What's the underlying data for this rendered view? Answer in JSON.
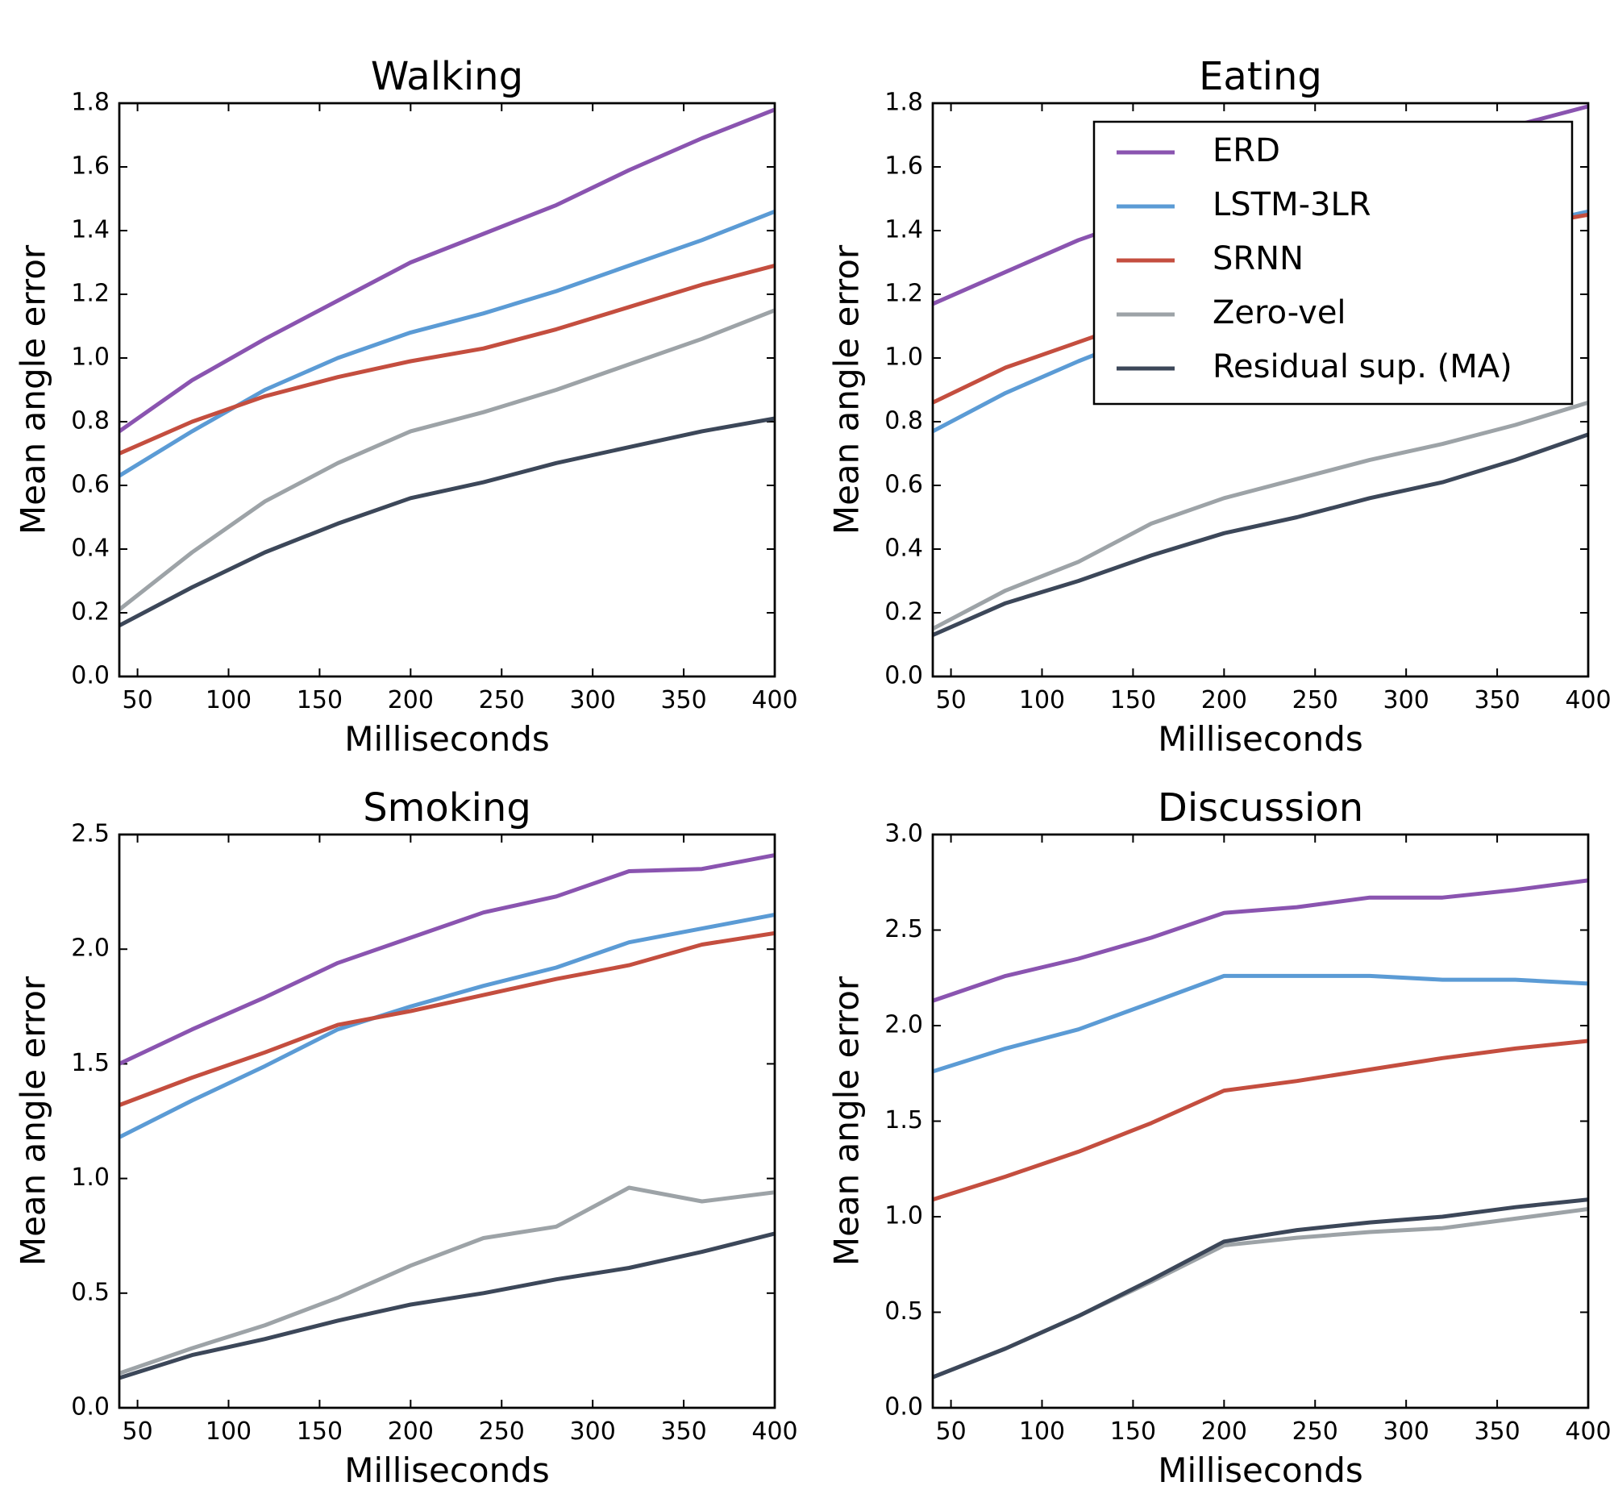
{
  "chart_data": [
    {
      "type": "line",
      "title": "Walking",
      "xlabel": "Milliseconds",
      "ylabel": "Mean angle error",
      "xlim": [
        40,
        400
      ],
      "ylim": [
        0,
        1.8
      ],
      "xticks": [
        50,
        100,
        150,
        200,
        250,
        300,
        350,
        400
      ],
      "xtick_labels": [
        "50",
        "100",
        "150",
        "200",
        "250",
        "300",
        "350",
        "400"
      ],
      "yticks": [
        0,
        0.2,
        0.4,
        0.6,
        0.8,
        1.0,
        1.2,
        1.4,
        1.6,
        1.8
      ],
      "ytick_labels": [
        "0.0",
        "0.2",
        "0.4",
        "0.6",
        "0.8",
        "1.0",
        "1.2",
        "1.4",
        "1.6",
        "1.8"
      ],
      "grid": false,
      "x": [
        40,
        80,
        120,
        160,
        200,
        240,
        280,
        320,
        360,
        400
      ],
      "series": [
        {
          "name": "ERD",
          "color": "#8a54b0",
          "values": [
            0.77,
            0.93,
            1.06,
            1.18,
            1.3,
            1.39,
            1.48,
            1.59,
            1.69,
            1.78
          ]
        },
        {
          "name": "LSTM-3LR",
          "color": "#5b9bd5",
          "values": [
            0.63,
            0.77,
            0.9,
            1.0,
            1.08,
            1.14,
            1.21,
            1.29,
            1.37,
            1.46
          ]
        },
        {
          "name": "SRNN",
          "color": "#c44e3f",
          "values": [
            0.7,
            0.8,
            0.88,
            0.94,
            0.99,
            1.03,
            1.09,
            1.16,
            1.23,
            1.29
          ]
        },
        {
          "name": "Zero-vel",
          "color": "#9da3a7",
          "values": [
            0.21,
            0.39,
            0.55,
            0.67,
            0.77,
            0.83,
            0.9,
            0.98,
            1.06,
            1.15
          ]
        },
        {
          "name": "Residual sup. (MA)",
          "color": "#3c4759",
          "values": [
            0.16,
            0.28,
            0.39,
            0.48,
            0.56,
            0.61,
            0.67,
            0.72,
            0.77,
            0.81
          ]
        }
      ]
    },
    {
      "type": "line",
      "title": "Eating",
      "xlabel": "Milliseconds",
      "ylabel": "Mean angle error",
      "xlim": [
        40,
        400
      ],
      "ylim": [
        0,
        1.8
      ],
      "xticks": [
        50,
        100,
        150,
        200,
        250,
        300,
        350,
        400
      ],
      "xtick_labels": [
        "50",
        "100",
        "150",
        "200",
        "250",
        "300",
        "350",
        "400"
      ],
      "yticks": [
        0,
        0.2,
        0.4,
        0.6,
        0.8,
        1.0,
        1.2,
        1.4,
        1.6,
        1.8
      ],
      "ytick_labels": [
        "0.0",
        "0.2",
        "0.4",
        "0.6",
        "0.8",
        "1.0",
        "1.2",
        "1.4",
        "1.6",
        "1.8"
      ],
      "grid": false,
      "legend_position": "top-right",
      "x": [
        40,
        80,
        120,
        160,
        200,
        240,
        280,
        320,
        360,
        400
      ],
      "series": [
        {
          "name": "ERD",
          "color": "#8a54b0",
          "values": [
            1.17,
            1.27,
            1.37,
            1.45,
            1.52,
            1.58,
            1.63,
            1.68,
            1.73,
            1.79
          ]
        },
        {
          "name": "LSTM-3LR",
          "color": "#5b9bd5",
          "values": [
            0.77,
            0.89,
            0.99,
            1.08,
            1.16,
            1.23,
            1.3,
            1.36,
            1.41,
            1.46
          ]
        },
        {
          "name": "SRNN",
          "color": "#c44e3f",
          "values": [
            0.86,
            0.97,
            1.05,
            1.13,
            1.2,
            1.26,
            1.32,
            1.37,
            1.41,
            1.45
          ]
        },
        {
          "name": "Zero-vel",
          "color": "#9da3a7",
          "values": [
            0.15,
            0.27,
            0.36,
            0.48,
            0.56,
            0.62,
            0.68,
            0.73,
            0.79,
            0.86
          ]
        },
        {
          "name": "Residual sup. (MA)",
          "color": "#3c4759",
          "values": [
            0.13,
            0.23,
            0.3,
            0.38,
            0.45,
            0.5,
            0.56,
            0.61,
            0.68,
            0.76
          ]
        }
      ]
    },
    {
      "type": "line",
      "title": "Smoking",
      "xlabel": "Milliseconds",
      "ylabel": "Mean angle error",
      "xlim": [
        40,
        400
      ],
      "ylim": [
        0,
        2.5
      ],
      "xticks": [
        50,
        100,
        150,
        200,
        250,
        300,
        350,
        400
      ],
      "xtick_labels": [
        "50",
        "100",
        "150",
        "200",
        "250",
        "300",
        "350",
        "400"
      ],
      "yticks": [
        0,
        0.5,
        1.0,
        1.5,
        2.0,
        2.5
      ],
      "ytick_labels": [
        "0.0",
        "0.5",
        "1.0",
        "1.5",
        "2.0",
        "2.5"
      ],
      "grid": false,
      "x": [
        40,
        80,
        120,
        160,
        200,
        240,
        280,
        320,
        360,
        400
      ],
      "series": [
        {
          "name": "ERD",
          "color": "#8a54b0",
          "values": [
            1.5,
            1.65,
            1.79,
            1.94,
            2.05,
            2.16,
            2.23,
            2.34,
            2.35,
            2.41
          ]
        },
        {
          "name": "LSTM-3LR",
          "color": "#5b9bd5",
          "values": [
            1.18,
            1.34,
            1.49,
            1.65,
            1.75,
            1.84,
            1.92,
            2.03,
            2.09,
            2.15
          ]
        },
        {
          "name": "SRNN",
          "color": "#c44e3f",
          "values": [
            1.32,
            1.44,
            1.55,
            1.67,
            1.73,
            1.8,
            1.87,
            1.93,
            2.02,
            2.07
          ]
        },
        {
          "name": "Zero-vel",
          "color": "#9da3a7",
          "values": [
            0.15,
            0.26,
            0.36,
            0.48,
            0.62,
            0.74,
            0.79,
            0.96,
            0.9,
            0.94
          ]
        },
        {
          "name": "Residual sup. (MA)",
          "color": "#3c4759",
          "values": [
            0.13,
            0.23,
            0.3,
            0.38,
            0.45,
            0.5,
            0.56,
            0.61,
            0.68,
            0.76
          ]
        }
      ]
    },
    {
      "type": "line",
      "title": "Discussion",
      "xlabel": "Milliseconds",
      "ylabel": "Mean angle error",
      "xlim": [
        40,
        400
      ],
      "ylim": [
        0,
        3.0
      ],
      "xticks": [
        50,
        100,
        150,
        200,
        250,
        300,
        350,
        400
      ],
      "xtick_labels": [
        "50",
        "100",
        "150",
        "200",
        "250",
        "300",
        "350",
        "400"
      ],
      "yticks": [
        0,
        0.5,
        1.0,
        1.5,
        2.0,
        2.5,
        3.0
      ],
      "ytick_labels": [
        "0.0",
        "0.5",
        "1.0",
        "1.5",
        "2.0",
        "2.5",
        "3.0"
      ],
      "grid": false,
      "x": [
        40,
        80,
        120,
        160,
        200,
        240,
        280,
        320,
        360,
        400
      ],
      "series": [
        {
          "name": "ERD",
          "color": "#8a54b0",
          "values": [
            2.13,
            2.26,
            2.35,
            2.46,
            2.59,
            2.62,
            2.67,
            2.67,
            2.71,
            2.76
          ]
        },
        {
          "name": "LSTM-3LR",
          "color": "#5b9bd5",
          "values": [
            1.76,
            1.88,
            1.98,
            2.12,
            2.26,
            2.26,
            2.26,
            2.24,
            2.24,
            2.22
          ]
        },
        {
          "name": "SRNN",
          "color": "#c44e3f",
          "values": [
            1.09,
            1.21,
            1.34,
            1.49,
            1.66,
            1.71,
            1.77,
            1.83,
            1.88,
            1.92
          ]
        },
        {
          "name": "Zero-vel",
          "color": "#9da3a7",
          "values": [
            0.16,
            0.31,
            0.48,
            0.66,
            0.85,
            0.89,
            0.92,
            0.94,
            0.99,
            1.04
          ]
        },
        {
          "name": "Residual sup. (MA)",
          "color": "#3c4759",
          "values": [
            0.16,
            0.31,
            0.48,
            0.67,
            0.87,
            0.93,
            0.97,
            1.0,
            1.05,
            1.09
          ]
        }
      ]
    }
  ],
  "legend": {
    "items": [
      {
        "label": "ERD",
        "color": "#8a54b0"
      },
      {
        "label": "LSTM-3LR",
        "color": "#5b9bd5"
      },
      {
        "label": "SRNN",
        "color": "#c44e3f"
      },
      {
        "label": "Zero-vel",
        "color": "#9da3a7"
      },
      {
        "label": "Residual sup. (MA)",
        "color": "#3c4759"
      }
    ]
  }
}
